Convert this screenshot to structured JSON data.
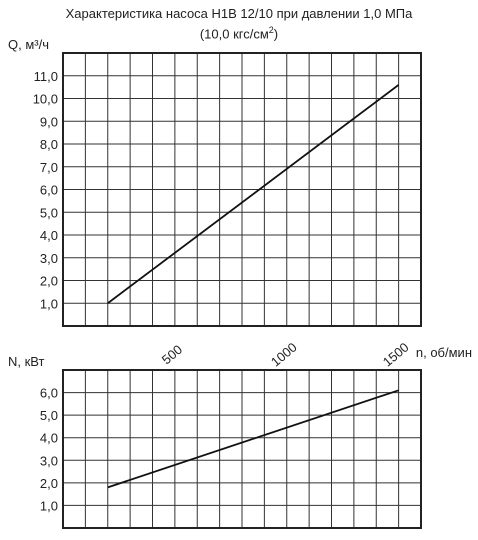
{
  "title": {
    "line1": "Характеристика насоса Н1В 12/10 при давлении 1,0 МПа",
    "line2_prefix": "(10,0 кгс/см",
    "line2_sup": "2",
    "line2_suffix": ")"
  },
  "chart_data": [
    {
      "type": "line",
      "ylabel": "Q, м³/ч",
      "xlim": [
        0,
        1600
      ],
      "ylim": [
        0,
        12
      ],
      "xticks": [
        500,
        1000,
        1500
      ],
      "yticks": [
        1,
        2,
        3,
        4,
        5,
        6,
        7,
        8,
        9,
        10,
        11
      ],
      "ytick_labels": [
        "1,0",
        "2,0",
        "3,0",
        "4,0",
        "5,0",
        "6,0",
        "7,0",
        "8,0",
        "9,0",
        "10,0",
        "11,0"
      ],
      "grid": true,
      "x": [
        200,
        1500
      ],
      "y": [
        1.0,
        10.6
      ]
    },
    {
      "type": "line",
      "ylabel": "N, кВт",
      "xlabel": "n, об/мин",
      "xlim": [
        0,
        1600
      ],
      "ylim": [
        0,
        7
      ],
      "xticks": [
        500,
        1000,
        1500
      ],
      "xtick_labels": [
        "500",
        "1000",
        "1500"
      ],
      "yticks": [
        1,
        2,
        3,
        4,
        5,
        6
      ],
      "ytick_labels": [
        "1,0",
        "2,0",
        "3,0",
        "4,0",
        "5,0",
        "6,0"
      ],
      "grid": true,
      "x": [
        200,
        1500
      ],
      "y": [
        1.8,
        6.1
      ]
    }
  ]
}
